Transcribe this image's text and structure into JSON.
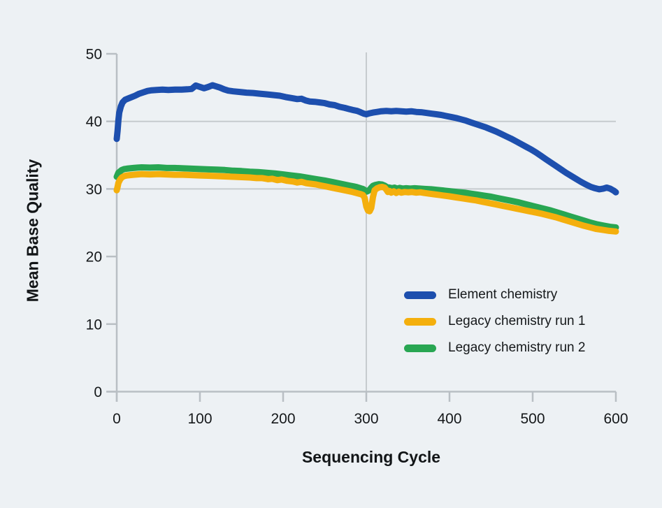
{
  "colors": {
    "background": "#edf1f4",
    "text": "#15181a",
    "grid": "#c6cbce",
    "axis": "#b9bfc4",
    "element_blue": "#1d4fae",
    "legacy_yellow": "#f4af0d",
    "legacy_green": "#28a652"
  },
  "chart_data": {
    "type": "line",
    "title": "",
    "xlabel": "Sequencing Cycle",
    "ylabel": "Mean Base Quality",
    "xlim": [
      0,
      600
    ],
    "ylim": [
      0,
      50
    ],
    "xticks": [
      0,
      100,
      200,
      300,
      400,
      500,
      600
    ],
    "yticks": [
      0,
      10,
      20,
      30,
      40,
      50
    ],
    "grid": {
      "horizontal_at": [
        30,
        40
      ],
      "vertical_at": [
        300
      ]
    },
    "legend_position": "inside-lower-right",
    "series": [
      {
        "name": "Element chemistry",
        "color": "#1d4fae",
        "points": [
          [
            0,
            37.4
          ],
          [
            1,
            38.6
          ],
          [
            2,
            40.2
          ],
          [
            3,
            41.3
          ],
          [
            5,
            42.2
          ],
          [
            7,
            42.8
          ],
          [
            10,
            43.2
          ],
          [
            14,
            43.4
          ],
          [
            18,
            43.6
          ],
          [
            22,
            43.8
          ],
          [
            27,
            44.1
          ],
          [
            32,
            44.3
          ],
          [
            37,
            44.5
          ],
          [
            42,
            44.6
          ],
          [
            48,
            44.65
          ],
          [
            55,
            44.7
          ],
          [
            62,
            44.65
          ],
          [
            70,
            44.7
          ],
          [
            78,
            44.7
          ],
          [
            85,
            44.75
          ],
          [
            90,
            44.8
          ],
          [
            95,
            45.3
          ],
          [
            100,
            45.1
          ],
          [
            105,
            44.9
          ],
          [
            110,
            45.1
          ],
          [
            115,
            45.35
          ],
          [
            119,
            45.2
          ],
          [
            124,
            45.0
          ],
          [
            129,
            44.75
          ],
          [
            134,
            44.55
          ],
          [
            140,
            44.45
          ],
          [
            148,
            44.35
          ],
          [
            156,
            44.25
          ],
          [
            164,
            44.2
          ],
          [
            172,
            44.1
          ],
          [
            180,
            44.0
          ],
          [
            188,
            43.9
          ],
          [
            196,
            43.8
          ],
          [
            203,
            43.6
          ],
          [
            210,
            43.45
          ],
          [
            217,
            43.3
          ],
          [
            222,
            43.35
          ],
          [
            227,
            43.1
          ],
          [
            232,
            42.95
          ],
          [
            238,
            42.9
          ],
          [
            244,
            42.8
          ],
          [
            250,
            42.7
          ],
          [
            256,
            42.5
          ],
          [
            262,
            42.4
          ],
          [
            268,
            42.15
          ],
          [
            274,
            42.0
          ],
          [
            280,
            41.8
          ],
          [
            285,
            41.65
          ],
          [
            289,
            41.55
          ],
          [
            293,
            41.35
          ],
          [
            297,
            41.15
          ],
          [
            300,
            41.05
          ],
          [
            304,
            41.2
          ],
          [
            308,
            41.3
          ],
          [
            313,
            41.4
          ],
          [
            318,
            41.5
          ],
          [
            324,
            41.55
          ],
          [
            330,
            41.5
          ],
          [
            336,
            41.55
          ],
          [
            342,
            41.5
          ],
          [
            348,
            41.45
          ],
          [
            354,
            41.5
          ],
          [
            360,
            41.4
          ],
          [
            366,
            41.35
          ],
          [
            372,
            41.25
          ],
          [
            378,
            41.15
          ],
          [
            384,
            41.05
          ],
          [
            390,
            40.95
          ],
          [
            396,
            40.8
          ],
          [
            402,
            40.65
          ],
          [
            408,
            40.5
          ],
          [
            414,
            40.3
          ],
          [
            420,
            40.1
          ],
          [
            426,
            39.85
          ],
          [
            432,
            39.6
          ],
          [
            438,
            39.35
          ],
          [
            444,
            39.1
          ],
          [
            450,
            38.8
          ],
          [
            456,
            38.5
          ],
          [
            462,
            38.15
          ],
          [
            468,
            37.8
          ],
          [
            474,
            37.45
          ],
          [
            480,
            37.05
          ],
          [
            486,
            36.65
          ],
          [
            492,
            36.25
          ],
          [
            498,
            35.85
          ],
          [
            504,
            35.4
          ],
          [
            510,
            34.9
          ],
          [
            516,
            34.4
          ],
          [
            522,
            33.9
          ],
          [
            528,
            33.4
          ],
          [
            534,
            32.9
          ],
          [
            540,
            32.4
          ],
          [
            546,
            31.95
          ],
          [
            552,
            31.5
          ],
          [
            558,
            31.05
          ],
          [
            564,
            30.65
          ],
          [
            570,
            30.3
          ],
          [
            575,
            30.1
          ],
          [
            580,
            29.95
          ],
          [
            585,
            30.05
          ],
          [
            589,
            30.2
          ],
          [
            593,
            30.05
          ],
          [
            596,
            29.85
          ],
          [
            598,
            29.7
          ],
          [
            600,
            29.5
          ]
        ]
      },
      {
        "name": "Legacy chemistry run 1",
        "color": "#f4af0d",
        "points": [
          [
            0,
            29.8
          ],
          [
            1,
            30.3
          ],
          [
            2,
            30.9
          ],
          [
            4,
            31.4
          ],
          [
            6,
            31.7
          ],
          [
            9,
            31.9
          ],
          [
            12,
            32.0
          ],
          [
            16,
            32.05
          ],
          [
            20,
            32.1
          ],
          [
            25,
            32.15
          ],
          [
            30,
            32.2
          ],
          [
            40,
            32.15
          ],
          [
            50,
            32.2
          ],
          [
            60,
            32.15
          ],
          [
            70,
            32.1
          ],
          [
            80,
            32.1
          ],
          [
            90,
            32.05
          ],
          [
            100,
            32.0
          ],
          [
            110,
            31.95
          ],
          [
            120,
            31.9
          ],
          [
            130,
            31.85
          ],
          [
            140,
            31.8
          ],
          [
            150,
            31.75
          ],
          [
            160,
            31.7
          ],
          [
            168,
            31.6
          ],
          [
            175,
            31.6
          ],
          [
            182,
            31.45
          ],
          [
            187,
            31.5
          ],
          [
            193,
            31.3
          ],
          [
            198,
            31.4
          ],
          [
            205,
            31.2
          ],
          [
            212,
            31.1
          ],
          [
            217,
            30.95
          ],
          [
            222,
            31.05
          ],
          [
            228,
            30.85
          ],
          [
            234,
            30.75
          ],
          [
            240,
            30.65
          ],
          [
            246,
            30.5
          ],
          [
            252,
            30.35
          ],
          [
            258,
            30.2
          ],
          [
            264,
            30.05
          ],
          [
            270,
            29.9
          ],
          [
            276,
            29.75
          ],
          [
            282,
            29.6
          ],
          [
            288,
            29.4
          ],
          [
            293,
            29.25
          ],
          [
            296,
            29.1
          ],
          [
            298,
            28.7
          ],
          [
            300,
            27.4
          ],
          [
            302,
            26.8
          ],
          [
            304,
            26.7
          ],
          [
            306,
            27.2
          ],
          [
            308,
            28.8
          ],
          [
            310,
            29.8
          ],
          [
            313,
            30.1
          ],
          [
            316,
            30.25
          ],
          [
            319,
            30.3
          ],
          [
            322,
            30.2
          ],
          [
            324,
            29.9
          ],
          [
            326,
            29.55
          ],
          [
            328,
            29.7
          ],
          [
            330,
            29.45
          ],
          [
            333,
            29.65
          ],
          [
            336,
            29.4
          ],
          [
            339,
            29.6
          ],
          [
            342,
            29.45
          ],
          [
            346,
            29.55
          ],
          [
            350,
            29.5
          ],
          [
            355,
            29.55
          ],
          [
            360,
            29.45
          ],
          [
            365,
            29.5
          ],
          [
            370,
            29.4
          ],
          [
            376,
            29.3
          ],
          [
            382,
            29.2
          ],
          [
            388,
            29.1
          ],
          [
            394,
            29.0
          ],
          [
            400,
            28.9
          ],
          [
            408,
            28.75
          ],
          [
            416,
            28.6
          ],
          [
            424,
            28.45
          ],
          [
            432,
            28.3
          ],
          [
            440,
            28.1
          ],
          [
            448,
            27.9
          ],
          [
            456,
            27.7
          ],
          [
            464,
            27.5
          ],
          [
            472,
            27.3
          ],
          [
            480,
            27.1
          ],
          [
            488,
            26.9
          ],
          [
            496,
            26.7
          ],
          [
            504,
            26.5
          ],
          [
            512,
            26.3
          ],
          [
            520,
            26.05
          ],
          [
            528,
            25.8
          ],
          [
            536,
            25.5
          ],
          [
            544,
            25.2
          ],
          [
            552,
            24.9
          ],
          [
            560,
            24.6
          ],
          [
            568,
            24.35
          ],
          [
            576,
            24.1
          ],
          [
            584,
            23.95
          ],
          [
            592,
            23.8
          ],
          [
            600,
            23.7
          ]
        ]
      },
      {
        "name": "Legacy chemistry run 2",
        "color": "#28a652",
        "points": [
          [
            0,
            31.8
          ],
          [
            1,
            32.1
          ],
          [
            2,
            32.4
          ],
          [
            4,
            32.6
          ],
          [
            6,
            32.8
          ],
          [
            9,
            32.95
          ],
          [
            12,
            33.0
          ],
          [
            16,
            33.05
          ],
          [
            20,
            33.1
          ],
          [
            25,
            33.15
          ],
          [
            30,
            33.2
          ],
          [
            40,
            33.15
          ],
          [
            50,
            33.2
          ],
          [
            60,
            33.1
          ],
          [
            70,
            33.1
          ],
          [
            80,
            33.05
          ],
          [
            90,
            33.0
          ],
          [
            100,
            32.95
          ],
          [
            110,
            32.9
          ],
          [
            120,
            32.85
          ],
          [
            130,
            32.8
          ],
          [
            140,
            32.7
          ],
          [
            150,
            32.65
          ],
          [
            160,
            32.55
          ],
          [
            170,
            32.5
          ],
          [
            180,
            32.4
          ],
          [
            190,
            32.3
          ],
          [
            200,
            32.15
          ],
          [
            210,
            32.0
          ],
          [
            220,
            31.85
          ],
          [
            230,
            31.65
          ],
          [
            240,
            31.45
          ],
          [
            250,
            31.25
          ],
          [
            260,
            31.0
          ],
          [
            270,
            30.75
          ],
          [
            280,
            30.5
          ],
          [
            288,
            30.3
          ],
          [
            293,
            30.1
          ],
          [
            296,
            30.0
          ],
          [
            298,
            29.85
          ],
          [
            300,
            29.6
          ],
          [
            302,
            29.7
          ],
          [
            304,
            29.9
          ],
          [
            306,
            30.2
          ],
          [
            308,
            30.45
          ],
          [
            311,
            30.6
          ],
          [
            315,
            30.7
          ],
          [
            319,
            30.65
          ],
          [
            322,
            30.5
          ],
          [
            325,
            30.25
          ],
          [
            328,
            30.2
          ],
          [
            331,
            30.1
          ],
          [
            334,
            30.2
          ],
          [
            337,
            30.05
          ],
          [
            340,
            30.15
          ],
          [
            344,
            30.05
          ],
          [
            348,
            30.1
          ],
          [
            353,
            30.05
          ],
          [
            358,
            30.1
          ],
          [
            364,
            30.05
          ],
          [
            370,
            30.0
          ],
          [
            378,
            29.95
          ],
          [
            386,
            29.85
          ],
          [
            394,
            29.75
          ],
          [
            402,
            29.65
          ],
          [
            410,
            29.55
          ],
          [
            418,
            29.45
          ],
          [
            426,
            29.3
          ],
          [
            434,
            29.15
          ],
          [
            442,
            29.0
          ],
          [
            450,
            28.85
          ],
          [
            458,
            28.65
          ],
          [
            466,
            28.45
          ],
          [
            474,
            28.25
          ],
          [
            482,
            28.05
          ],
          [
            490,
            27.8
          ],
          [
            498,
            27.55
          ],
          [
            506,
            27.3
          ],
          [
            514,
            27.05
          ],
          [
            522,
            26.8
          ],
          [
            530,
            26.5
          ],
          [
            538,
            26.2
          ],
          [
            546,
            25.9
          ],
          [
            554,
            25.6
          ],
          [
            562,
            25.3
          ],
          [
            570,
            25.0
          ],
          [
            578,
            24.75
          ],
          [
            586,
            24.55
          ],
          [
            593,
            24.4
          ],
          [
            600,
            24.3
          ]
        ]
      }
    ]
  }
}
